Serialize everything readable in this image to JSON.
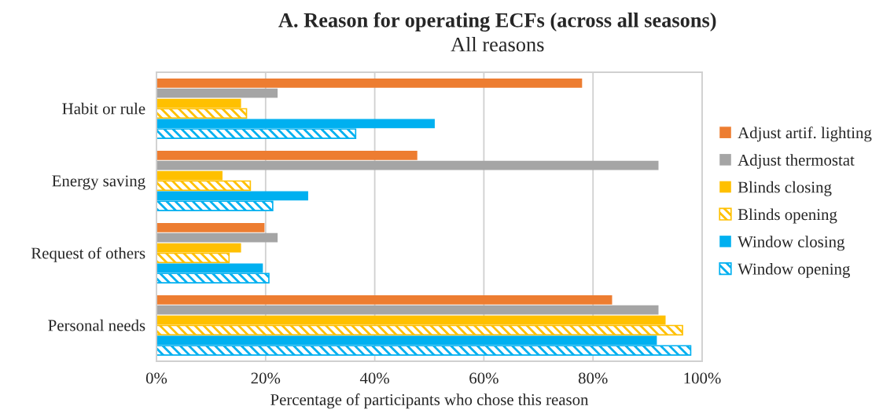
{
  "chart_data": {
    "type": "bar",
    "orientation": "horizontal",
    "title": "A. Reason for operating ECFs (across all seasons)",
    "subtitle": "All reasons",
    "xlabel": "Percentage of participants who chose this reason",
    "categories": [
      "Habit or rule",
      "Energy saving",
      "Request of others",
      "Personal needs"
    ],
    "series": [
      {
        "name": "Adjust artif. lighting",
        "color": "#ed7d31",
        "values": [
          78,
          47.8,
          19.8,
          83.5
        ]
      },
      {
        "name": "Adjust thermostat",
        "color": "#a5a5a5",
        "values": [
          22.2,
          92,
          22.2,
          92
        ]
      },
      {
        "name": "Blinds closing",
        "color": "#ffc000",
        "values": [
          15.5,
          12.1,
          15.5,
          93.3
        ]
      },
      {
        "name": "Blinds opening",
        "color": "#ffc000",
        "values": [
          16.5,
          17.2,
          13.3,
          96.4
        ]
      },
      {
        "name": "Window closing",
        "color": "#00b0f0",
        "values": [
          51,
          27.8,
          19.5,
          91.7
        ]
      },
      {
        "name": "Window opening",
        "color": "#00b0f0",
        "values": [
          36.5,
          21.3,
          20.6,
          97.9
        ]
      }
    ],
    "xlim": [
      0,
      100
    ],
    "xticks": [
      {
        "value": 0,
        "label": "0%"
      },
      {
        "value": 20,
        "label": "20%"
      },
      {
        "value": 40,
        "label": "40%"
      },
      {
        "value": 60,
        "label": "60%"
      },
      {
        "value": 80,
        "label": "80%"
      },
      {
        "value": 100,
        "label": "100%"
      }
    ],
    "grid": "x",
    "legend": "right"
  }
}
